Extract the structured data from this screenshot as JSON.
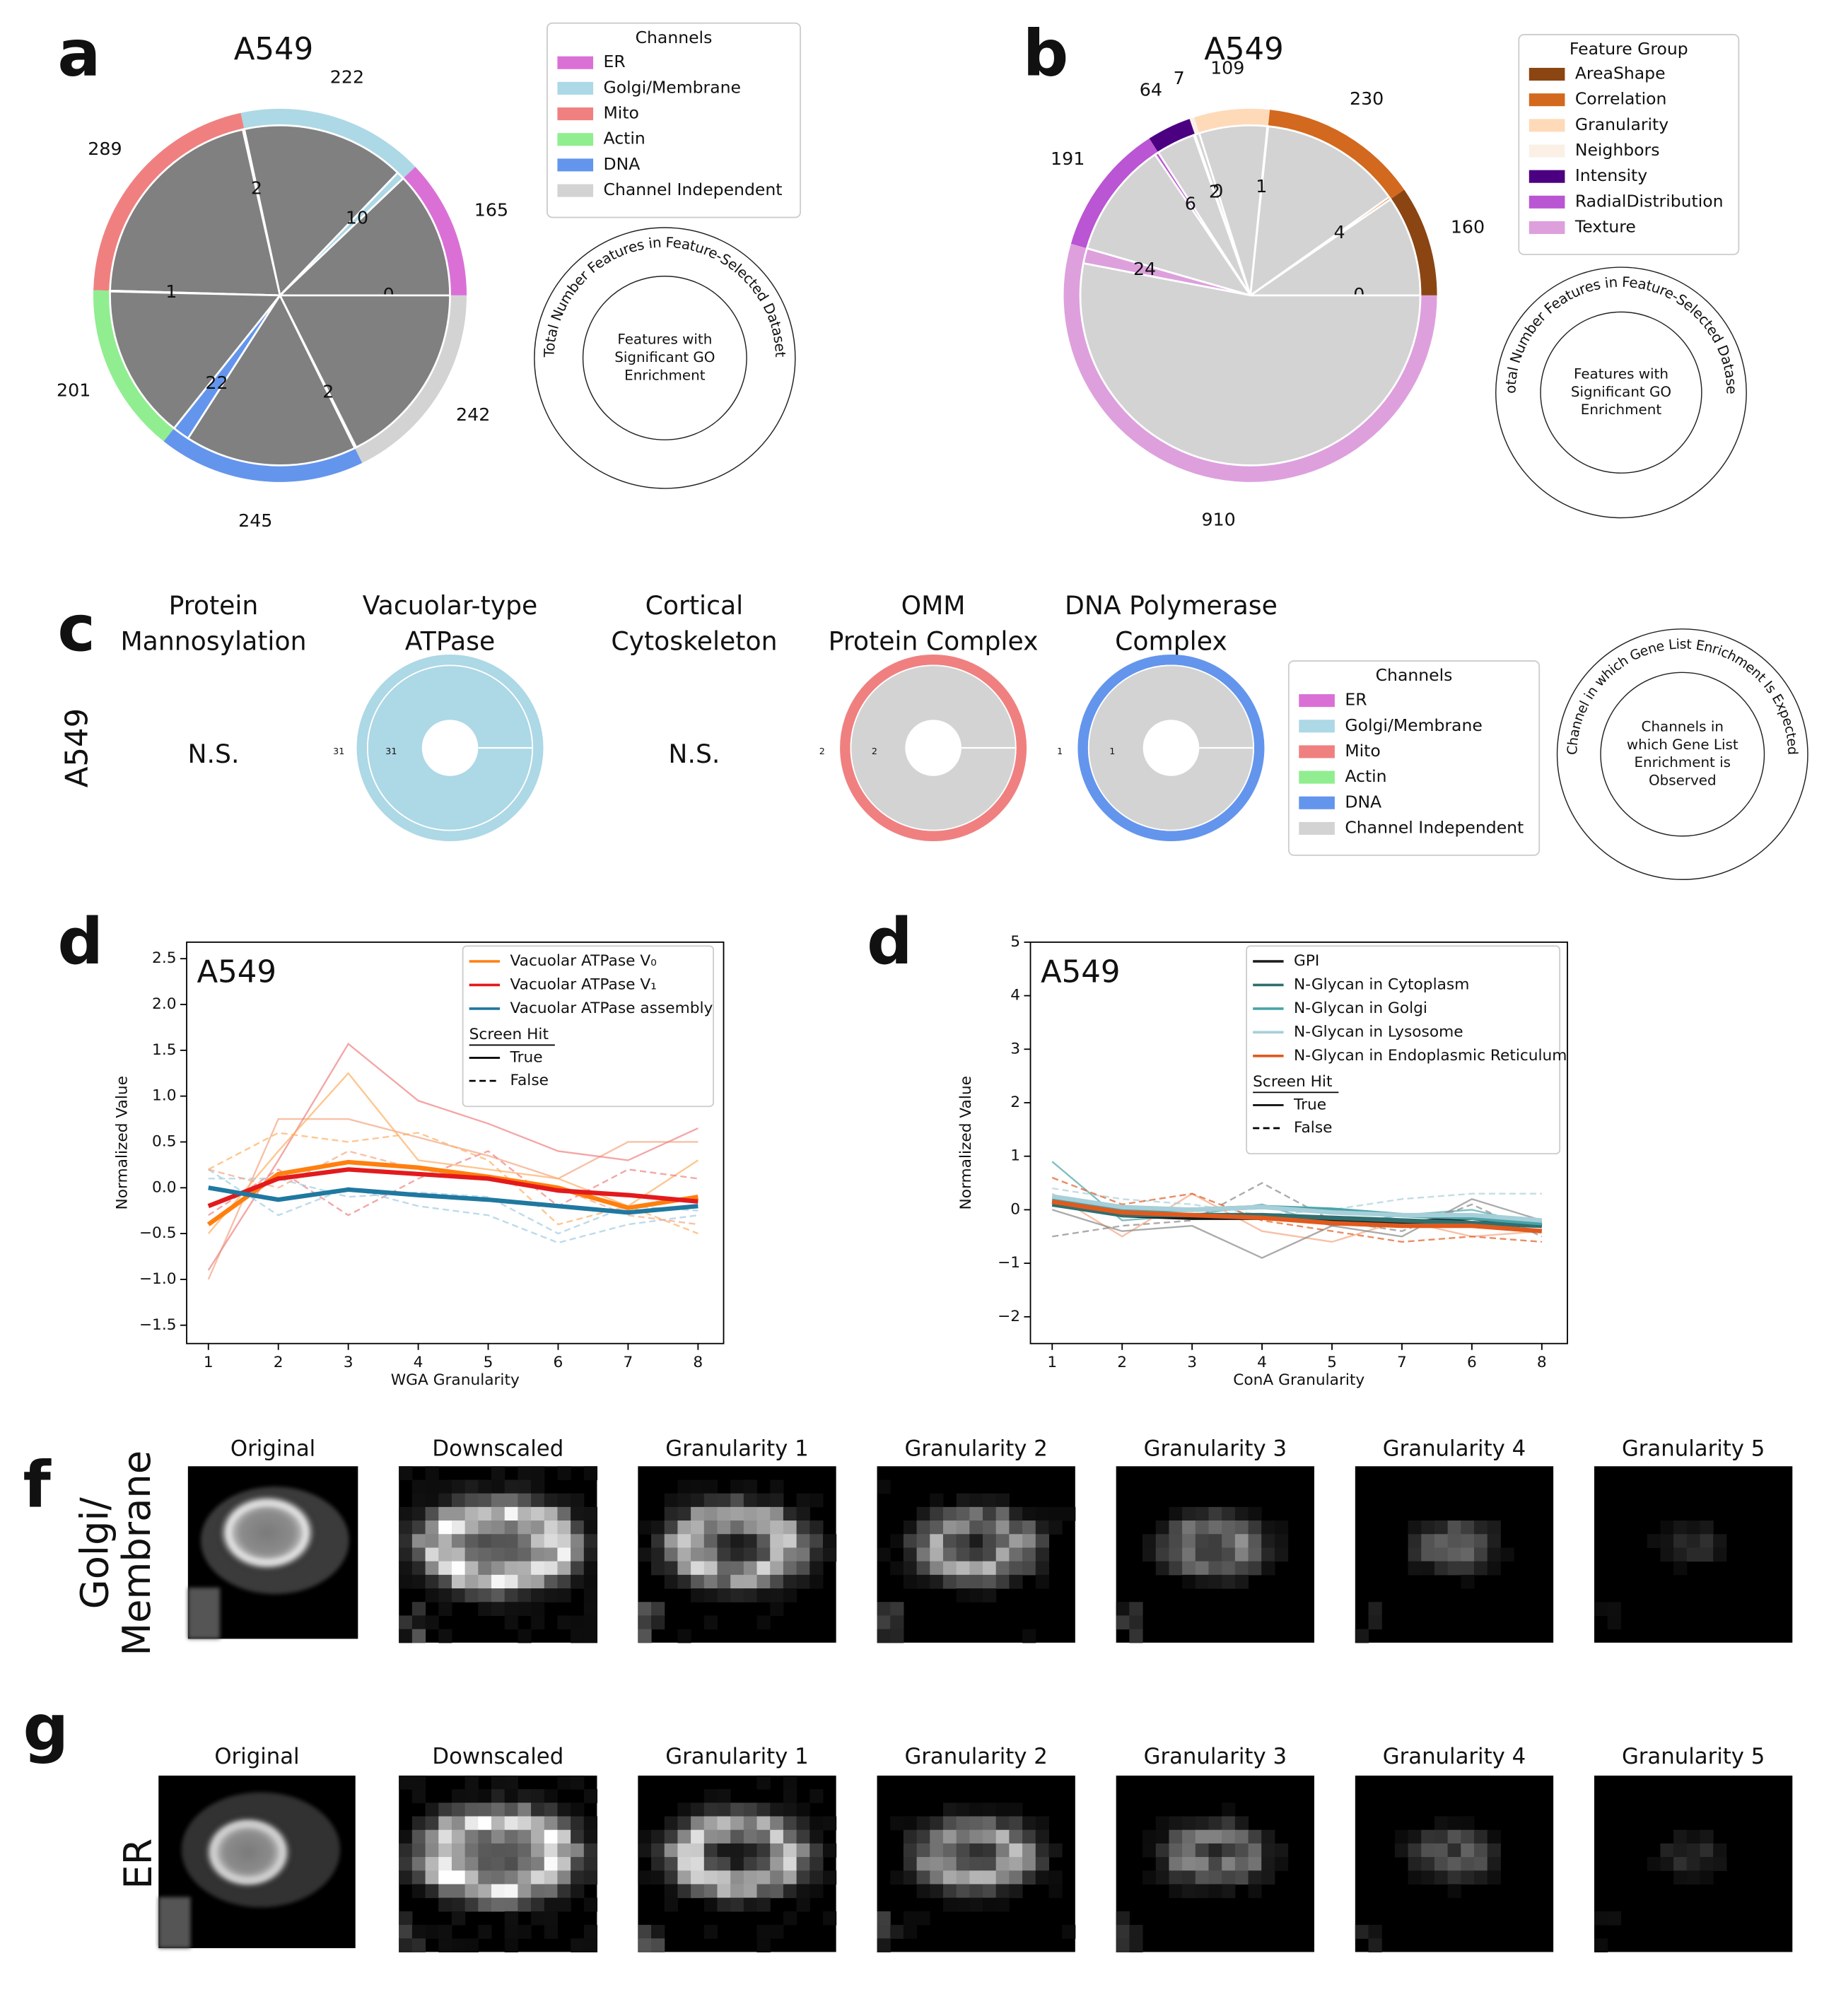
{
  "chart_data": [
    {
      "type": "pie",
      "panel": "a",
      "title": "A549",
      "categories": [
        "ER",
        "Golgi/Membrane",
        "Mito",
        "Actin",
        "DNA",
        "Channel Independent"
      ],
      "colors": [
        "#da70d6",
        "#add8e6",
        "#f08080",
        "#90ee90",
        "#6495ed",
        "#d3d3d3"
      ],
      "values": [
        165,
        222,
        289,
        201,
        245,
        242
      ],
      "inner_values": [
        0,
        10,
        2,
        1,
        22,
        2
      ],
      "inner_color": "#808080",
      "legend_title": "Channels",
      "key_outer": "Total Number Features in Feature-Selected Dataset",
      "key_inner": [
        "Features with",
        "Significant GO",
        "Enrichment"
      ]
    },
    {
      "type": "pie",
      "panel": "b",
      "title": "A549",
      "categories": [
        "AreaShape",
        "Correlation",
        "Granularity",
        "Neighbors",
        "Intensity",
        "RadialDistribution",
        "Texture"
      ],
      "colors": [
        "#8b4513",
        "#d2691e",
        "#ffdab9",
        "#faf0e6",
        "#4b0082",
        "#ba55d3",
        "#dda0dd"
      ],
      "values": [
        160,
        230,
        109,
        7,
        64,
        191,
        910
      ],
      "inner_values": [
        0,
        4,
        1,
        0,
        2,
        6,
        24
      ],
      "inner_color": "#d3d3d3",
      "legend_title": "Feature Group",
      "key_outer": "Total Number Features in Feature-Selected Dataset",
      "key_inner": [
        "Features with",
        "Significant GO",
        "Enrichment"
      ]
    },
    {
      "type": "line",
      "panel": "d",
      "title": "A549",
      "x_label": "WGA Granularity",
      "y_label": "Normalized Value",
      "categories": [
        "1",
        "2",
        "3",
        "4",
        "5",
        "6",
        "7",
        "8"
      ],
      "ylim": [
        -1.7,
        2.68
      ],
      "yticks": [
        {
          "value": -1.5,
          "label": "−1.5"
        },
        {
          "value": -1,
          "label": "−1.0"
        },
        {
          "value": -0.5,
          "label": "−0.5"
        },
        {
          "value": 0,
          "label": "0.0"
        },
        0.5,
        {
          "value": 1,
          "label": "1.0"
        },
        1.5,
        {
          "value": 2,
          "label": "2.0"
        },
        2.5
      ],
      "series": [
        {
          "name": "Vacuolar ATPase V₀",
          "color": "#ff7f0e",
          "values": [
            -0.4,
            0.15,
            0.28,
            0.22,
            0.12,
            0.0,
            -0.22,
            -0.1
          ]
        },
        {
          "name": "Vacuolar ATPase V₁",
          "color": "#e31a1c",
          "values": [
            -0.2,
            0.1,
            0.2,
            0.15,
            0.1,
            -0.03,
            -0.08,
            -0.15
          ]
        },
        {
          "name": "Vacuolar ATPase assembly",
          "color": "#1f78a0",
          "values": [
            0.0,
            -0.13,
            -0.02,
            -0.08,
            -0.13,
            -0.2,
            -0.27,
            -0.2
          ]
        }
      ],
      "individual_lines": [
        {
          "color": "#f4a582",
          "dash": false,
          "values": [
            -1.0,
            0.75,
            0.75,
            0.55,
            0.35,
            0.1,
            0.5,
            0.5
          ]
        },
        {
          "color": "#f08080",
          "dash": false,
          "values": [
            -0.9,
            0.3,
            1.57,
            0.95,
            0.7,
            0.4,
            0.3,
            0.65
          ]
        },
        {
          "color": "#fdae61",
          "dash": false,
          "values": [
            -0.5,
            0.4,
            1.25,
            0.3,
            0.2,
            0.1,
            -0.2,
            0.3
          ]
        },
        {
          "color": "#f08080",
          "dash": true,
          "values": [
            -0.3,
            0.2,
            -0.3,
            0.1,
            0.4,
            -0.2,
            0.2,
            0.1
          ]
        },
        {
          "color": "#fdae61",
          "dash": true,
          "values": [
            0.2,
            0.6,
            0.5,
            0.6,
            0.3,
            -0.4,
            -0.2,
            -0.5
          ]
        },
        {
          "color": "#9ecae1",
          "dash": true,
          "values": [
            0.2,
            -0.3,
            0.0,
            -0.2,
            -0.3,
            -0.6,
            -0.4,
            -0.3
          ]
        },
        {
          "color": "#9ecae1",
          "dash": true,
          "values": [
            0.1,
            0.1,
            -0.1,
            -0.05,
            -0.1,
            -0.5,
            -0.2,
            -0.25
          ]
        },
        {
          "color": "#f4a582",
          "dash": true,
          "values": [
            0.2,
            0.0,
            0.4,
            0.2,
            0.1,
            0.0,
            -0.3,
            -0.4
          ]
        }
      ],
      "legend_subtitle": "Screen Hit",
      "style_entries": [
        "True",
        "False"
      ]
    },
    {
      "type": "line",
      "panel": "d",
      "title": "A549",
      "x_label": "ConA Granularity",
      "y_label": "Normalized Value",
      "categories": [
        "1",
        "2",
        "3",
        "4",
        "5",
        "7",
        "6",
        "8"
      ],
      "ylim": [
        -2.5,
        5
      ],
      "yticks": [
        {
          "value": -2,
          "label": "−2"
        },
        {
          "value": -1,
          "label": "−1"
        },
        0,
        1,
        2,
        3,
        4,
        5
      ],
      "series": [
        {
          "name": "GPI",
          "color": "#1a1a1a",
          "values": [
            0.15,
            -0.1,
            -0.15,
            -0.15,
            -0.2,
            -0.25,
            -0.15,
            -0.3
          ]
        },
        {
          "name": "N-Glycan in Cytoplasm",
          "color": "#2f6f6f",
          "values": [
            0.1,
            -0.1,
            -0.1,
            -0.1,
            -0.15,
            -0.2,
            -0.25,
            -0.3
          ]
        },
        {
          "name": "N-Glycan in Golgi",
          "color": "#4aa3a8",
          "values": [
            0.2,
            0.0,
            0.0,
            0.05,
            0.0,
            -0.1,
            -0.15,
            -0.25
          ]
        },
        {
          "name": "N-Glycan in Lysosome",
          "color": "#a6cfd9",
          "values": [
            0.25,
            0.05,
            0.0,
            0.05,
            -0.05,
            -0.1,
            -0.1,
            -0.2
          ]
        },
        {
          "name": "N-Glycan in Endoplasmic Reticulum",
          "color": "#e05a1e",
          "values": [
            0.15,
            -0.05,
            -0.1,
            -0.15,
            -0.25,
            -0.3,
            -0.3,
            -0.4
          ]
        }
      ],
      "individual_lines": [
        {
          "color": "#4aa3a8",
          "dash": false,
          "values": [
            0.9,
            -0.2,
            -0.1,
            0.1,
            -0.3,
            -0.1,
            0.0,
            -0.3
          ]
        },
        {
          "color": "#f4a582",
          "dash": false,
          "values": [
            0.3,
            -0.5,
            0.3,
            -0.4,
            -0.6,
            -0.2,
            -0.5,
            -0.4
          ]
        },
        {
          "color": "#888888",
          "dash": true,
          "values": [
            -0.5,
            -0.3,
            -0.2,
            0.5,
            -0.2,
            -0.4,
            0.1,
            -0.5
          ]
        },
        {
          "color": "#a6cfd9",
          "dash": true,
          "values": [
            0.4,
            0.2,
            0.1,
            -0.1,
            0.0,
            0.2,
            0.3,
            0.3
          ]
        },
        {
          "color": "#888888",
          "dash": false,
          "values": [
            0.0,
            -0.4,
            -0.3,
            -0.9,
            -0.3,
            -0.5,
            0.2,
            -0.2
          ]
        },
        {
          "color": "#e05a1e",
          "dash": true,
          "values": [
            0.6,
            0.1,
            0.3,
            -0.2,
            -0.4,
            -0.6,
            -0.5,
            -0.6
          ]
        }
      ],
      "legend_subtitle": "Screen Hit",
      "style_entries": [
        "True",
        "False"
      ]
    }
  ],
  "panel_c": {
    "panel": "c",
    "row_label": "A549",
    "columns": [
      {
        "title": [
          "Protein",
          "Mannosylation"
        ],
        "result": "N.S."
      },
      {
        "title": [
          "Vacuolar-type",
          "ATPase"
        ],
        "outer_value": 31,
        "inner_value": 31,
        "ring_color": "#add8e6",
        "inner_color": "#add8e6"
      },
      {
        "title": [
          "Cortical",
          "Cytoskeleton"
        ],
        "result": "N.S."
      },
      {
        "title": [
          "OMM",
          "Protein Complex"
        ],
        "outer_value": 2,
        "inner_value": 2,
        "ring_color": "#f08080",
        "inner_color": "#d3d3d3"
      },
      {
        "title": [
          "DNA Polymerase",
          "Complex"
        ],
        "outer_value": 1,
        "inner_value": 1,
        "ring_color": "#6495ed",
        "inner_color": "#d3d3d3"
      }
    ],
    "legend_title": "Channels",
    "legend": [
      "ER",
      "Golgi/Membrane",
      "Mito",
      "Actin",
      "DNA",
      "Channel Independent"
    ],
    "legend_colors": [
      "#da70d6",
      "#add8e6",
      "#f08080",
      "#90ee90",
      "#6495ed",
      "#d3d3d3"
    ],
    "key_outer": "Channel in which Gene List Enrichment Is Expected",
    "key_inner": [
      "Channels in",
      "which Gene List",
      "Enrichment is",
      "Observed"
    ]
  },
  "image_panels": [
    {
      "letter": "f",
      "row_label": [
        "Golgi/",
        "Membrane"
      ],
      "titles": [
        "Original",
        "Downscaled",
        "Granularity 1",
        "Granularity 2",
        "Granularity 3",
        "Granularity 4",
        "Granularity 5"
      ]
    },
    {
      "letter": "g",
      "row_label": [
        "ER"
      ],
      "titles": [
        "Original",
        "Downscaled",
        "Granularity 1",
        "Granularity 2",
        "Granularity 3",
        "Granularity 4",
        "Granularity 5"
      ]
    }
  ]
}
